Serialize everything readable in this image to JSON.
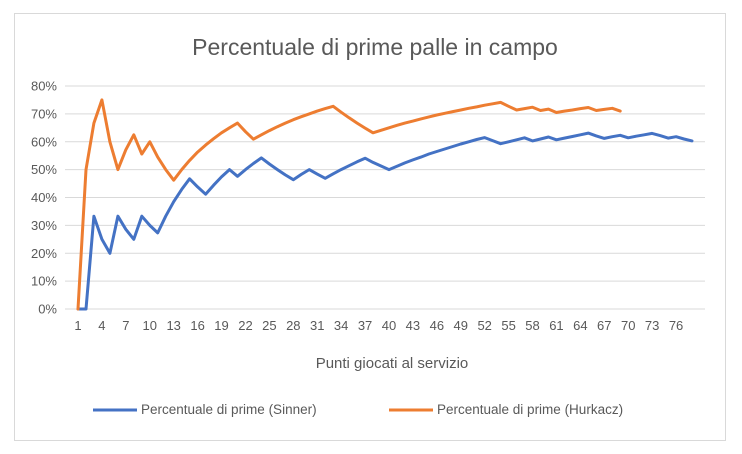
{
  "chart_data": {
    "type": "line",
    "title": "Percentuale di prime palle in campo",
    "xlabel": "Punti giocati al servizio",
    "ylabel": "",
    "ylim": [
      0,
      0.8
    ],
    "yticks": [
      "0%",
      "10%",
      "20%",
      "30%",
      "40%",
      "50%",
      "60%",
      "70%",
      "80%"
    ],
    "xticks": [
      1,
      4,
      7,
      10,
      13,
      16,
      19,
      22,
      25,
      28,
      31,
      34,
      37,
      40,
      43,
      46,
      49,
      52,
      55,
      58,
      61,
      64,
      67,
      70,
      73,
      76
    ],
    "grid": true,
    "legend_position": "bottom",
    "series": [
      {
        "name": "Percentuale di prime (Sinner)",
        "color": "#4472C4",
        "x": [
          1,
          2,
          3,
          4,
          5,
          6,
          7,
          8,
          9,
          10,
          11,
          12,
          13,
          14,
          15,
          16,
          17,
          18,
          19,
          20,
          21,
          22,
          23,
          24,
          25,
          26,
          27,
          28,
          29,
          30,
          31,
          32,
          33,
          34,
          35,
          36,
          37,
          38,
          39,
          40,
          41,
          42,
          43,
          44,
          45,
          46,
          47,
          48,
          49,
          50,
          51,
          52,
          53,
          54,
          55,
          56,
          57,
          58,
          59,
          60,
          61,
          62,
          63,
          64,
          65,
          66,
          67,
          68,
          69,
          70,
          71,
          72,
          73,
          74,
          75,
          76,
          77,
          78
        ],
        "values": [
          0.0,
          0.0,
          0.333,
          0.25,
          0.2,
          0.333,
          0.286,
          0.25,
          0.333,
          0.3,
          0.273,
          0.333,
          0.385,
          0.429,
          0.467,
          0.438,
          0.412,
          0.444,
          0.474,
          0.5,
          0.476,
          0.5,
          0.522,
          0.542,
          0.52,
          0.5,
          0.481,
          0.464,
          0.483,
          0.5,
          0.484,
          0.469,
          0.485,
          0.5,
          0.514,
          0.528,
          0.541,
          0.526,
          0.513,
          0.5,
          0.512,
          0.524,
          0.535,
          0.545,
          0.556,
          0.565,
          0.574,
          0.583,
          0.592,
          0.6,
          0.608,
          0.615,
          0.604,
          0.593,
          0.6,
          0.607,
          0.614,
          0.603,
          0.61,
          0.617,
          0.607,
          0.613,
          0.619,
          0.625,
          0.631,
          0.621,
          0.612,
          0.618,
          0.623,
          0.614,
          0.62,
          0.625,
          0.63,
          0.622,
          0.613,
          0.618,
          0.61,
          0.603
        ]
      },
      {
        "name": "Percentuale di prime (Hurkacz)",
        "color": "#ED7D31",
        "x": [
          1,
          2,
          3,
          4,
          5,
          6,
          7,
          8,
          9,
          10,
          11,
          12,
          13,
          14,
          15,
          16,
          17,
          18,
          19,
          20,
          21,
          22,
          23,
          24,
          25,
          26,
          27,
          28,
          29,
          30,
          31,
          32,
          33,
          34,
          35,
          36,
          37,
          38,
          39,
          40,
          41,
          42,
          43,
          44,
          45,
          46,
          47,
          48,
          49,
          50,
          51,
          52,
          53,
          54,
          55,
          56,
          57,
          58,
          59,
          60,
          61,
          62,
          63,
          64,
          65,
          66,
          67,
          68,
          69
        ],
        "values": [
          0.0,
          0.5,
          0.667,
          0.75,
          0.6,
          0.5,
          0.571,
          0.625,
          0.556,
          0.6,
          0.545,
          0.5,
          0.462,
          0.5,
          0.533,
          0.563,
          0.588,
          0.611,
          0.632,
          0.65,
          0.667,
          0.636,
          0.609,
          0.625,
          0.64,
          0.654,
          0.667,
          0.679,
          0.69,
          0.7,
          0.71,
          0.719,
          0.727,
          0.706,
          0.686,
          0.667,
          0.649,
          0.632,
          0.641,
          0.65,
          0.659,
          0.667,
          0.674,
          0.682,
          0.689,
          0.696,
          0.702,
          0.708,
          0.714,
          0.72,
          0.725,
          0.731,
          0.736,
          0.741,
          0.727,
          0.714,
          0.719,
          0.724,
          0.712,
          0.717,
          0.705,
          0.71,
          0.714,
          0.719,
          0.723,
          0.712,
          0.716,
          0.72,
          0.71
        ]
      }
    ]
  }
}
